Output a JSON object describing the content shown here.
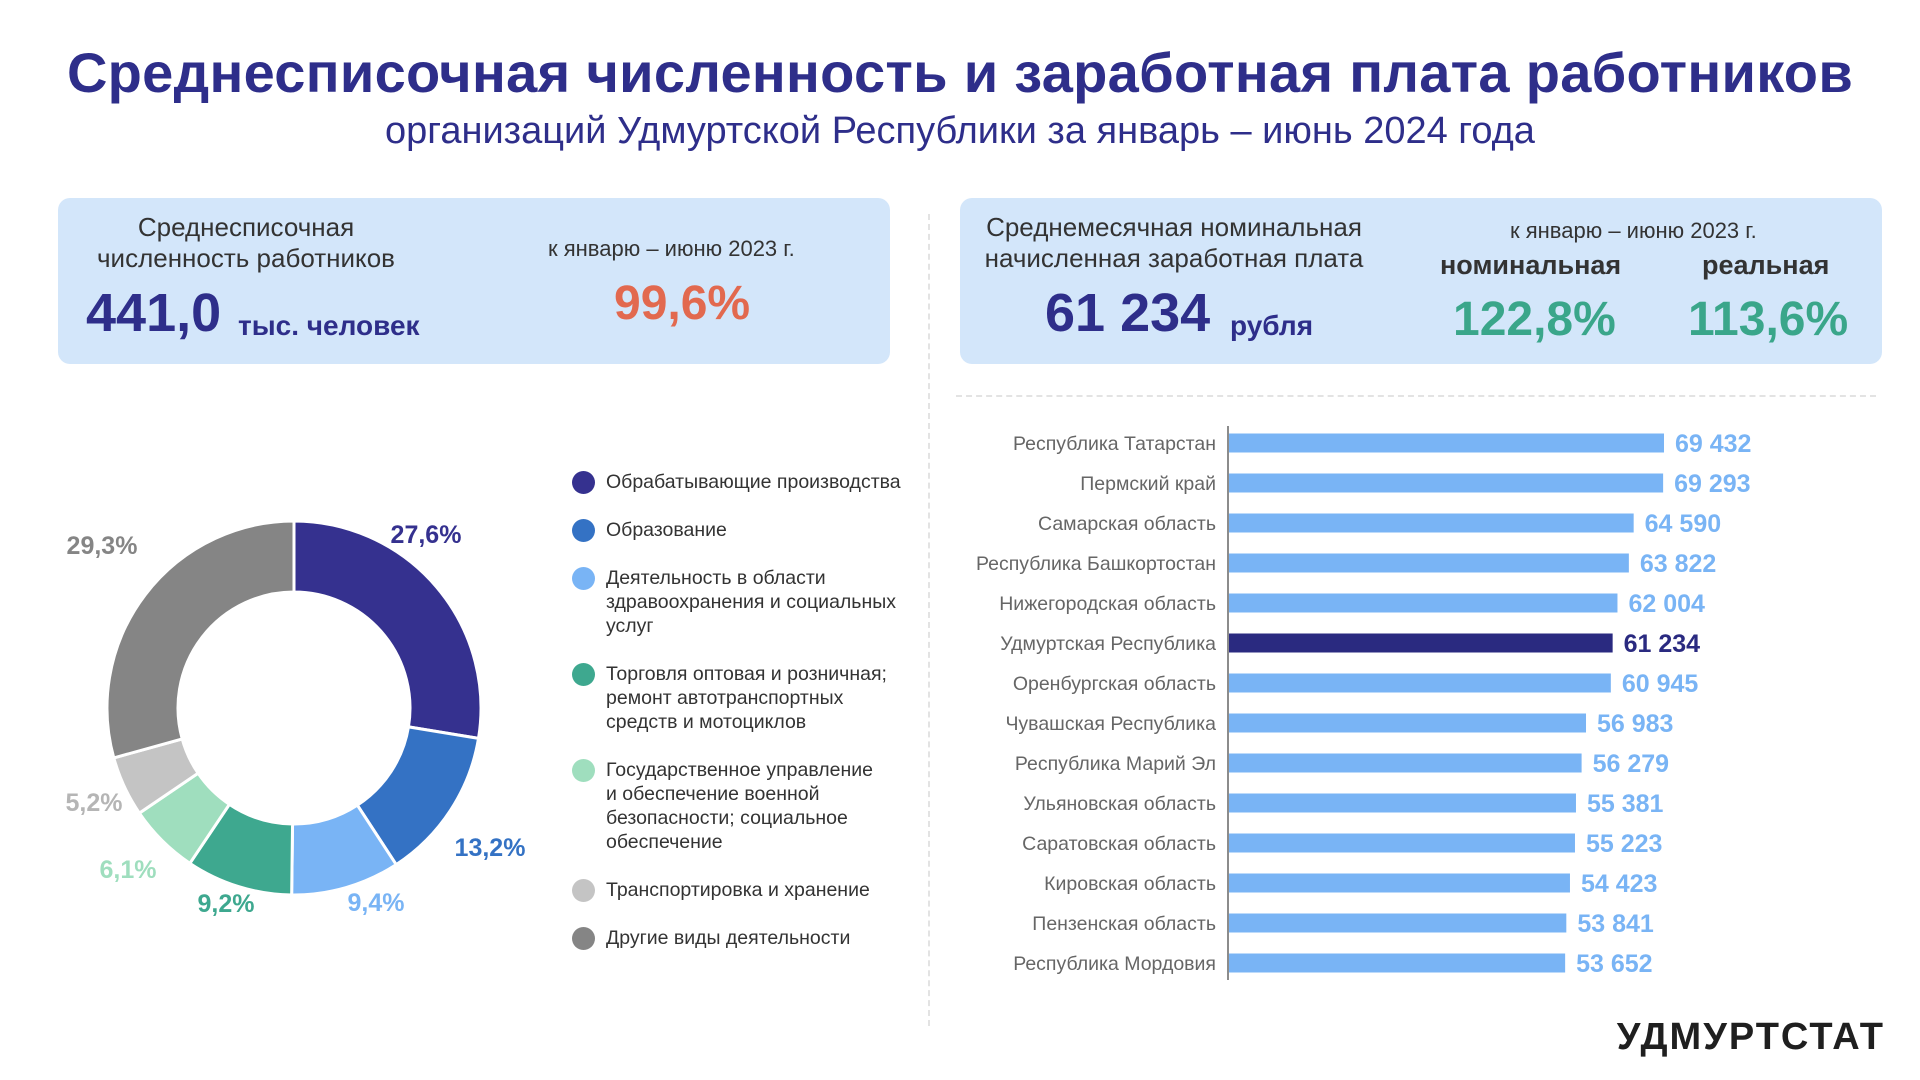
{
  "header": {
    "title": "Среднесписочная численность и заработная плата работников",
    "subtitle": "организаций Удмуртской Республики за январь – июнь 2024 года"
  },
  "card_employees": {
    "label_line1": "Среднесписочная",
    "label_line2": "численность работников",
    "value": "441,0",
    "unit": "тыс. человек",
    "compare_label": "к январю – июню 2023 г.",
    "compare_value": "99,6%"
  },
  "card_salary": {
    "label_line1": "Среднемесячная номинальная",
    "label_line2": "начисленная заработная плата",
    "value": "61 234",
    "unit": "рубля",
    "compare_label": "к январю – июню 2023 г.",
    "nominal_label": "номинальная",
    "nominal_value": "122,8%",
    "real_label": "реальная",
    "real_value": "113,6%"
  },
  "chart_data": [
    {
      "type": "pie",
      "donut": true,
      "categories": [
        "Обрабатывающие производства",
        "Образование",
        "Деятельность в области здравоохранения и социальных услуг",
        "Торговля оптовая и розничная; ремонт автотранспортных средств и мотоциклов",
        "Государственное управление и обеспечение военной безопасности; социальное обеспечение",
        "Транспортировка и хранение",
        "Другие виды деятельности"
      ],
      "legend_lines": [
        [
          "Обрабатывающие производства"
        ],
        [
          "Образование"
        ],
        [
          "Деятельность в области",
          "здравоохранения и социальных",
          "услуг"
        ],
        [
          "Торговля оптовая и розничная;",
          "ремонт автотранспортных",
          "средств и мотоциклов"
        ],
        [
          "Государственное управление",
          "и обеспечение военной",
          "безопасности; социальное",
          "обеспечение"
        ],
        [
          "Транспортировка и хранение"
        ],
        [
          "Другие виды деятельности"
        ]
      ],
      "values": [
        27.6,
        13.2,
        9.4,
        9.2,
        6.1,
        5.2,
        29.3
      ],
      "labels": [
        "27,6%",
        "13,2%",
        "9,4%",
        "9,2%",
        "6,1%",
        "5,2%",
        "29,3%"
      ],
      "colors": [
        "#35318f",
        "#3472c4",
        "#79b4f5",
        "#3ea88f",
        "#9fdebe",
        "#c4c4c4",
        "#858585"
      ],
      "legend": "right"
    },
    {
      "type": "bar",
      "orientation": "horizontal",
      "categories": [
        "Республика Татарстан",
        "Пермский край",
        "Самарская область",
        "Республика Башкортостан",
        "Нижегородская область",
        "Удмуртская Республика",
        "Оренбургская область",
        "Чувашская Республика",
        "Республика Марий Эл",
        "Ульяновская область",
        "Саратовская область",
        "Кировская область",
        "Пензенская область",
        "Республика Мордовия"
      ],
      "values": [
        69432,
        69293,
        64590,
        63822,
        62004,
        61234,
        60945,
        56983,
        56279,
        55381,
        55223,
        54423,
        53841,
        53652
      ],
      "labels": [
        "69 432",
        "69 293",
        "64 590",
        "63 822",
        "62 004",
        "61 234",
        "60 945",
        "56 983",
        "56 279",
        "55 381",
        "55 223",
        "54 423",
        "53 841",
        "53 652"
      ],
      "highlight": "Удмуртская Республика",
      "colors": {
        "bar": "#79b4f5",
        "highlight": "#2a2a80",
        "label": "#79b4f5",
        "highlight_label": "#2a2a80"
      }
    }
  ],
  "footer": {
    "logo_text": "УДМУРТСТАТ"
  }
}
